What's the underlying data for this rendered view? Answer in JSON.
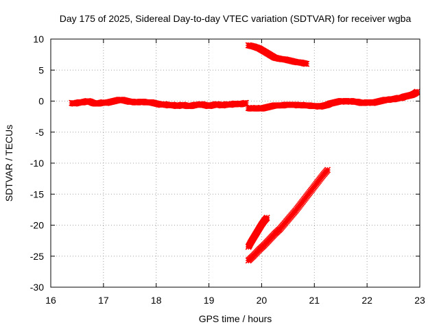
{
  "chart_data": {
    "type": "scatter",
    "title": "Day 175 of 2025, Sidereal Day-to-day VTEC variation (SDTVAR) for receiver wgba",
    "xlabel": "GPS time / hours",
    "ylabel": "SDTVAR / TECUs",
    "xlim": [
      16,
      23
    ],
    "ylim": [
      -30,
      10
    ],
    "xticks": [
      "16",
      "17",
      "18",
      "19",
      "20",
      "21",
      "22",
      "23"
    ],
    "yticks": [
      "10",
      "5",
      "0",
      "-5",
      "-10",
      "-15",
      "-20",
      "-25",
      "-30"
    ],
    "grid": true,
    "marker_color": "#ff0000",
    "series": [
      {
        "x": [
          16.4,
          16.45,
          16.5,
          16.55,
          16.6,
          16.65,
          16.7,
          16.75,
          16.8,
          16.85,
          16.9,
          16.95,
          17.0,
          17.05,
          17.1,
          17.15,
          17.2,
          17.25,
          17.3,
          17.35,
          17.4,
          17.45,
          17.5,
          17.55,
          17.6,
          17.65,
          17.7,
          17.75,
          17.8,
          17.85,
          17.9,
          17.95,
          18.0,
          18.05,
          18.1,
          18.15,
          18.2,
          18.25,
          18.3,
          18.35,
          18.4,
          18.45,
          18.5,
          18.55,
          18.6,
          18.65,
          18.7,
          18.75,
          18.8,
          18.85,
          18.9,
          18.95,
          19.0,
          19.05,
          19.1,
          19.15,
          19.2,
          19.25,
          19.3,
          19.35,
          19.4,
          19.45,
          19.5,
          19.55,
          19.6,
          19.65,
          19.7
        ],
        "y": [
          -0.3,
          -0.4,
          -0.3,
          -0.2,
          -0.2,
          -0.1,
          0.0,
          -0.1,
          -0.3,
          -0.4,
          -0.4,
          -0.3,
          -0.2,
          -0.3,
          -0.2,
          -0.1,
          0.0,
          0.1,
          0.2,
          0.2,
          0.1,
          0.0,
          -0.1,
          -0.1,
          -0.2,
          -0.2,
          -0.1,
          -0.1,
          -0.2,
          -0.2,
          -0.2,
          -0.3,
          -0.4,
          -0.5,
          -0.6,
          -0.5,
          -0.6,
          -0.7,
          -0.6,
          -0.7,
          -0.8,
          -0.7,
          -0.6,
          -0.7,
          -0.8,
          -0.8,
          -0.7,
          -0.6,
          -0.6,
          -0.5,
          -0.6,
          -0.7,
          -0.8,
          -0.7,
          -0.6,
          -0.5,
          -0.6,
          -0.7,
          -0.6,
          -0.5,
          -0.6,
          -0.5,
          -0.4,
          -0.5,
          -0.5,
          -0.4,
          -0.3
        ]
      },
      {
        "x": [
          19.75,
          19.8,
          19.85,
          19.9,
          19.95,
          20.0,
          20.05,
          20.1,
          20.15,
          20.2,
          20.25,
          20.3,
          20.35,
          20.4,
          20.45,
          20.5,
          20.55,
          20.6,
          20.65,
          20.7,
          20.75,
          20.8,
          20.85,
          20.9,
          20.95,
          21.0,
          21.05,
          21.1,
          21.15,
          21.2,
          21.25,
          21.3,
          21.35,
          21.4,
          21.45,
          21.5,
          21.55,
          21.6,
          21.65,
          21.7,
          21.75,
          21.8,
          21.85,
          21.9,
          21.95,
          22.0,
          22.05,
          22.1,
          22.15,
          22.2,
          22.25,
          22.3,
          22.35,
          22.4,
          22.45,
          22.5,
          22.55,
          22.6,
          22.65,
          22.7,
          22.75,
          22.8,
          22.85,
          22.9,
          22.95
        ],
        "y": [
          -1.1,
          -1.2,
          -1.2,
          -1.1,
          -1.2,
          -1.2,
          -1.1,
          -1.0,
          -0.9,
          -0.8,
          -0.7,
          -0.7,
          -0.7,
          -0.7,
          -0.6,
          -0.6,
          -0.6,
          -0.6,
          -0.6,
          -0.7,
          -0.6,
          -0.7,
          -0.7,
          -0.7,
          -0.8,
          -0.8,
          -0.8,
          -0.9,
          -0.8,
          -0.7,
          -0.6,
          -0.4,
          -0.3,
          -0.2,
          -0.1,
          0.0,
          0.0,
          -0.1,
          0.0,
          0.0,
          -0.1,
          -0.1,
          -0.2,
          -0.3,
          -0.3,
          -0.2,
          -0.2,
          -0.3,
          -0.2,
          -0.1,
          0.0,
          0.1,
          0.2,
          0.2,
          0.3,
          0.3,
          0.4,
          0.5,
          0.5,
          0.7,
          0.8,
          0.9,
          1.0,
          1.2,
          1.5
        ]
      },
      {
        "x": [
          19.75,
          19.85,
          19.95,
          20.05,
          20.15,
          20.25,
          20.35,
          20.45,
          20.55,
          20.65,
          20.75,
          20.85
        ],
        "y": [
          9.0,
          8.8,
          8.5,
          8.0,
          7.5,
          7.0,
          6.8,
          6.7,
          6.5,
          6.3,
          6.2,
          6.0
        ]
      },
      {
        "x": [
          19.75,
          19.8,
          19.85,
          19.9,
          19.95,
          20.0,
          20.05,
          20.1
        ],
        "y": [
          -23.5,
          -22.7,
          -22.0,
          -21.3,
          -20.6,
          -19.9,
          -19.3,
          -18.8
        ]
      },
      {
        "x": [
          19.75,
          19.85,
          19.95,
          20.05,
          20.15,
          20.25,
          20.35,
          20.45,
          20.55,
          20.65,
          20.75,
          20.85,
          20.95,
          21.05,
          21.15,
          21.25
        ],
        "y": [
          -25.7,
          -24.9,
          -24.0,
          -23.2,
          -22.3,
          -21.4,
          -20.6,
          -19.6,
          -18.6,
          -17.6,
          -16.5,
          -15.4,
          -14.3,
          -13.2,
          -12.1,
          -11.1
        ]
      }
    ]
  }
}
